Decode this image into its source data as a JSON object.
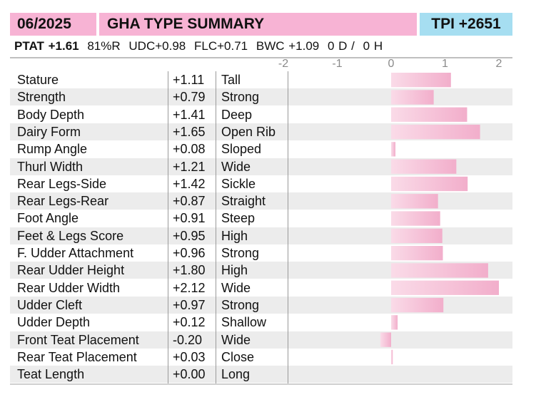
{
  "header": {
    "date": "06/2025",
    "title": "GHA TYPE SUMMARY",
    "tpi": "TPI +2651"
  },
  "summary": {
    "ptat": "PTAT +1.61",
    "reliability": "81%R",
    "udc": "UDC+0.98",
    "flc": "FLC+0.71",
    "bwc": "BWC +1.09",
    "daughters": "0 D /",
    "herds": "0 H"
  },
  "colors": {
    "header_pink": "#f7b3d4",
    "tpi_blue": "#a6def1",
    "bar_pink": "#f2aecb",
    "row_shade": "#ececec"
  },
  "chart_data": {
    "type": "bar",
    "orientation": "horizontal",
    "xlim": [
      -2,
      2
    ],
    "ticks": [
      "-2",
      "-1",
      "0",
      "1",
      "2"
    ],
    "tick_values": [
      -2,
      -1,
      0,
      1,
      2
    ],
    "rows": [
      {
        "trait": "Stature",
        "value_label": "+1.11",
        "descriptor": "Tall",
        "value": 1.11
      },
      {
        "trait": "Strength",
        "value_label": "+0.79",
        "descriptor": "Strong",
        "value": 0.79
      },
      {
        "trait": "Body Depth",
        "value_label": "+1.41",
        "descriptor": "Deep",
        "value": 1.41
      },
      {
        "trait": "Dairy Form",
        "value_label": "+1.65",
        "descriptor": "Open Rib",
        "value": 1.65
      },
      {
        "trait": "Rump Angle",
        "value_label": "+0.08",
        "descriptor": "Sloped",
        "value": 0.08
      },
      {
        "trait": "Thurl Width",
        "value_label": "+1.21",
        "descriptor": "Wide",
        "value": 1.21
      },
      {
        "trait": "Rear Legs-Side",
        "value_label": "+1.42",
        "descriptor": "Sickle",
        "value": 1.42
      },
      {
        "trait": "Rear Legs-Rear",
        "value_label": "+0.87",
        "descriptor": "Straight",
        "value": 0.87
      },
      {
        "trait": "Foot Angle",
        "value_label": "+0.91",
        "descriptor": "Steep",
        "value": 0.91
      },
      {
        "trait": "Feet & Legs Score",
        "value_label": "+0.95",
        "descriptor": "High",
        "value": 0.95
      },
      {
        "trait": "F. Udder Attachment",
        "value_label": "+0.96",
        "descriptor": "Strong",
        "value": 0.96
      },
      {
        "trait": "Rear Udder Height",
        "value_label": "+1.80",
        "descriptor": "High",
        "value": 1.8
      },
      {
        "trait": "Rear Udder Width",
        "value_label": "+2.12",
        "descriptor": "Wide",
        "value": 2.12
      },
      {
        "trait": "Udder Cleft",
        "value_label": "+0.97",
        "descriptor": "Strong",
        "value": 0.97
      },
      {
        "trait": "Udder Depth",
        "value_label": "+0.12",
        "descriptor": "Shallow",
        "value": 0.12
      },
      {
        "trait": "Front Teat Placement",
        "value_label": "-0.20",
        "descriptor": "Wide",
        "value": -0.2
      },
      {
        "trait": "Rear Teat Placement",
        "value_label": "+0.03",
        "descriptor": "Close",
        "value": 0.03
      },
      {
        "trait": "Teat Length",
        "value_label": "+0.00",
        "descriptor": "Long",
        "value": 0.0
      }
    ]
  }
}
